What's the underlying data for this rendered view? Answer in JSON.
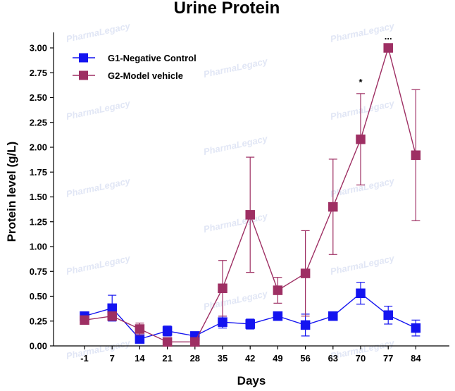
{
  "chart_data": {
    "type": "line",
    "title": "Urine Protein",
    "xlabel": "Days",
    "ylabel": "Protein level (g/L)",
    "categories": [
      "-1",
      "7",
      "14",
      "21",
      "28",
      "35",
      "42",
      "49",
      "56",
      "63",
      "70",
      "77",
      "84"
    ],
    "ylim": [
      0,
      3.0
    ],
    "yticks": [
      "0.00",
      "0.25",
      "0.50",
      "0.75",
      "1.00",
      "1.25",
      "1.50",
      "1.75",
      "2.00",
      "2.25",
      "2.50",
      "2.75",
      "3.00"
    ],
    "grid": false,
    "legend_position": "top-left",
    "series": [
      {
        "name": "G1-Negative Control",
        "color": "#1414f0",
        "values": [
          0.3,
          0.38,
          0.07,
          0.15,
          0.1,
          0.24,
          0.22,
          0.3,
          0.21,
          0.3,
          0.53,
          0.31,
          0.18
        ],
        "error": [
          0.03,
          0.13,
          0.03,
          0.05,
          0.03,
          0.06,
          0.05,
          0.03,
          0.11,
          0.03,
          0.11,
          0.09,
          0.08
        ]
      },
      {
        "name": "G2-Model vehicle",
        "color": "#9e2f63",
        "values": [
          0.26,
          0.3,
          0.17,
          0.04,
          0.04,
          0.58,
          1.32,
          0.56,
          0.73,
          1.4,
          2.08,
          3.0,
          1.92
        ],
        "error": [
          0.03,
          0.03,
          0.06,
          0.02,
          0.02,
          0.28,
          0.58,
          0.13,
          0.43,
          0.48,
          0.46,
          0.0,
          0.66
        ]
      }
    ],
    "annotations": [
      {
        "category": "70",
        "text": "*"
      },
      {
        "category": "77",
        "text": "..."
      }
    ],
    "watermark_text": "PharmaLegacy"
  }
}
